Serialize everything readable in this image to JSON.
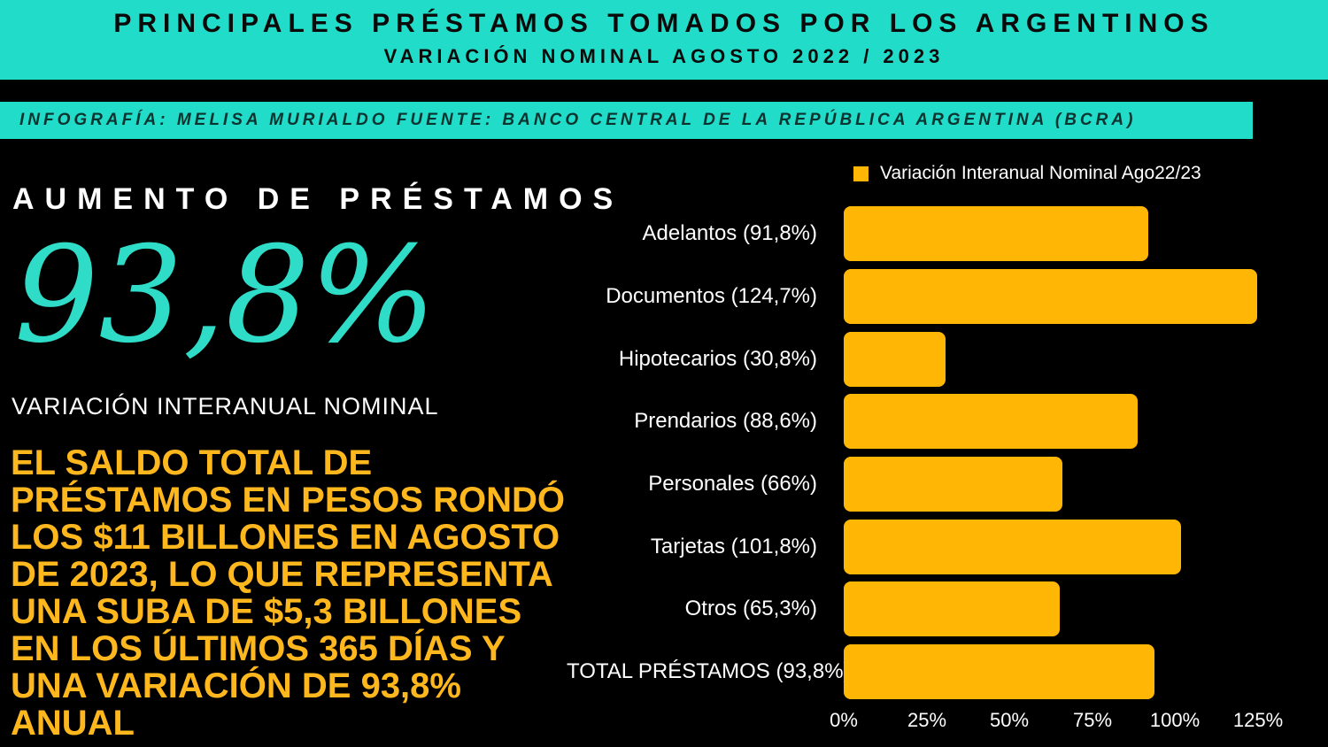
{
  "header": {
    "title": "PRINCIPALES PRÉSTAMOS TOMADOS POR LOS ARGENTINOS",
    "subtitle": "VARIACIÓN NOMINAL AGOSTO 2022 / 2023"
  },
  "credit": "INFOGRAFÍA: MELISA MURIALDO FUENTE: BANCO CENTRAL DE LA REPÚBLICA ARGENTINA (BCRA)",
  "left_panel": {
    "heading": "AUMENTO DE PRÉSTAMOS",
    "big_number": "93,8%",
    "big_number_caption": "VARIACIÓN INTERANUAL NOMINAL",
    "paragraph": "EL SALDO TOTAL DE\nPRÉSTAMOS EN PESOS RONDÓ\nLOS $11 BILLONES EN AGOSTO\nDE 2023, LO QUE REPRESENTA\nUNA SUBA DE $5,3 BILLONES\nEN LOS ÚLTIMOS 365 DÍAS Y\nUNA VARIACIÓN DE 93,8%\nANUAL"
  },
  "chart_data": {
    "type": "bar",
    "orientation": "horizontal",
    "title": "",
    "legend": "Variación Interanual Nominal Ago22/23",
    "legend_position": "top-right",
    "categories": [
      "Adelantos",
      "Documentos",
      "Hipotecarios",
      "Prendarios",
      "Personales",
      "Tarjetas",
      "Otros",
      "TOTAL PRÉSTAMOS"
    ],
    "values": [
      91.8,
      124.7,
      30.8,
      88.6,
      66,
      101.8,
      65.3,
      93.8
    ],
    "display_labels": [
      "Adelantos (91,8%)",
      "Documentos (124,7%)",
      "Hipotecarios (30,8%)",
      "Prendarios (88,6%)",
      "Personales (66%)",
      "Tarjetas (101,8%)",
      "Otros (65,3%)",
      "TOTAL PRÉSTAMOS (93,8%)"
    ],
    "unit": "%",
    "xlim": [
      0,
      125
    ],
    "x_ticks": [
      "0%",
      "25%",
      "50%",
      "75%",
      "100%",
      "125%"
    ],
    "x_tick_values": [
      0,
      25,
      50,
      75,
      100,
      125
    ],
    "grid": false
  },
  "colors": {
    "teal": "#21DCC8",
    "bar_yellow": "#FFB605",
    "text_yellow": "#FFB71E",
    "background": "#000000",
    "title_text": "#0A0A0A",
    "credit_text": "#0B332F",
    "white": "#FFFFFF"
  }
}
